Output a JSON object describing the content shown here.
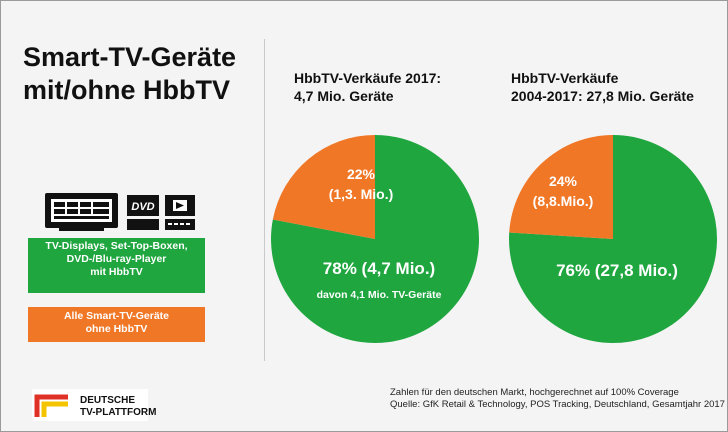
{
  "title": {
    "line1": "Smart-TV-Geräte",
    "line2": "mit/ohne HbbTV"
  },
  "legend": {
    "green_lines": [
      "TV-Displays, Set-Top-Boxen,",
      "DVD-/Blu-ray-Player",
      "mit HbbTV"
    ],
    "orange_lines": [
      "Alle Smart-TV-Geräte",
      "ohne HbbTV"
    ]
  },
  "devices": {
    "dvd_label": "DVD"
  },
  "logo": {
    "line1": "DEUTSCHE",
    "line2": "TV-PLATTFORM"
  },
  "footnote": {
    "line1": "Zahlen für den deutschen Markt, hochgerechnet auf 100% Coverage",
    "line2": "Quelle: GfK Retail & Technology, POS Tracking, Deutschland, Gesamtjahr 2017"
  },
  "colors": {
    "green": "#1fa63f",
    "orange": "#f07726"
  },
  "chart_data": [
    {
      "type": "pie",
      "title_lines": [
        "HbbTV-Verkäufe 2017:",
        "4,7 Mio. Geräte"
      ],
      "slices": [
        {
          "value": 78,
          "color": "#1fa63f",
          "label": "78% (4,7 Mio.)",
          "sublabel": "davon 4,1 Mio. TV-Geräte"
        },
        {
          "value": 22,
          "color": "#f07726",
          "label_lines": [
            "22%",
            "(1,3. Mio.)"
          ]
        }
      ]
    },
    {
      "type": "pie",
      "title_lines": [
        "HbbTV-Verkäufe",
        "2004-2017: 27,8 Mio. Geräte"
      ],
      "slices": [
        {
          "value": 76,
          "color": "#1fa63f",
          "label": "76% (27,8 Mio.)"
        },
        {
          "value": 24,
          "color": "#f07726",
          "label_lines": [
            "24%",
            "(8,8.Mio.)"
          ]
        }
      ]
    }
  ]
}
